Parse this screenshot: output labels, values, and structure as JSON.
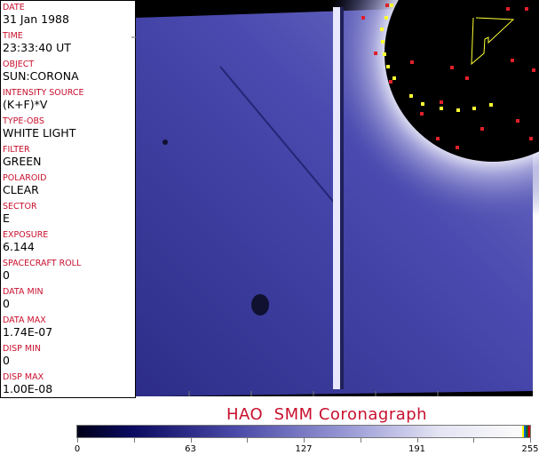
{
  "fields": [
    {
      "label": "DATE",
      "value": "31 Jan 1988"
    },
    {
      "label": "TIME",
      "value": "23:33:40 UT"
    },
    {
      "label": "OBJECT",
      "value": "SUN:CORONA"
    },
    {
      "label": "INTENSITY SOURCE",
      "value": "(K+F)*V"
    },
    {
      "label": "TYPE-OBS",
      "value": "WHITE LIGHT"
    },
    {
      "label": "FILTER",
      "value": "GREEN"
    },
    {
      "label": "POLAROID",
      "value": "CLEAR"
    },
    {
      "label": "SECTOR",
      "value": "E"
    },
    {
      "label": "EXPOSURE",
      "value": "6.144"
    },
    {
      "label": "SPACECRAFT ROLL",
      "value": "0"
    },
    {
      "label": "DATA MIN",
      "value": "0"
    },
    {
      "label": "DATA MAX",
      "value": "1.74E-07"
    },
    {
      "label": "DISP MIN",
      "value": "0"
    },
    {
      "label": "DISP MAX",
      "value": "1.00E-08"
    }
  ],
  "title": "HAO  SMM Coronagraph",
  "colorbar": {
    "ticks": [
      "0",
      "63",
      "127",
      "191",
      "255"
    ],
    "colors": {
      "low": "#000018",
      "mid": "#4a4aa8",
      "high": "#fafafa"
    }
  },
  "colors": {
    "label": "#c8102e",
    "markers_red": "#e0202a",
    "markers_yellow": "#ffff33"
  }
}
